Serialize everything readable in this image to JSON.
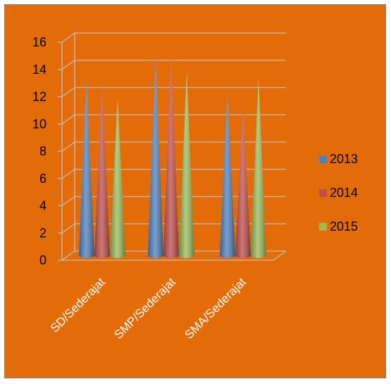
{
  "chart_data": {
    "type": "bar",
    "style": "3d-cone",
    "categories": [
      "SD/Sederajat",
      "SMP/Sederajat",
      "SMA/Sederajat"
    ],
    "series": [
      {
        "name": "2013",
        "color": "#4f81bd",
        "values": [
          13,
          14.5,
          12
        ]
      },
      {
        "name": "2014",
        "color": "#c0504d",
        "values": [
          12.5,
          14.5,
          11
        ]
      },
      {
        "name": "2015",
        "color": "#9bbb59",
        "values": [
          11.5,
          13.5,
          13
        ]
      }
    ],
    "yticks": [
      "0",
      "2",
      "4",
      "6",
      "8",
      "10",
      "12",
      "14",
      "16"
    ],
    "ylim": [
      0,
      16
    ],
    "grid": true,
    "legend_position": "right",
    "colors": {
      "background": "#e36c09",
      "grid": "#bfbfbf",
      "border": "#7f7f7f"
    }
  }
}
